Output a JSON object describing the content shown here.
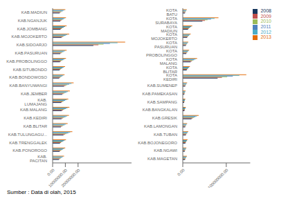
{
  "chart_data": [
    {
      "type": "bar",
      "orientation": "horizontal",
      "grid": false,
      "categories": [
        "KAB.MADIUN",
        "KAB.NGANJUK",
        "KAB.JOMBANG",
        "KAB.MOJOKERTO",
        "KAB.SIDOARJO",
        "KAB.PASURUAN",
        "KAB.PROBOLINGGO",
        "KAB.SITUBONDO",
        "KAB.BONDOWOSO",
        "KAB.BANYUWANGI",
        "KAB.JEMBER",
        "KAB. LUMAJANG",
        "KAB.MALANG",
        "KAB.KEDIRI",
        "KAB.BLITAR",
        "KAB.TULUNGAGU...",
        "KAB.TRENGGALEK",
        "KAB.PONOROGO",
        "KAB. PACITAN"
      ],
      "series": [
        {
          "name": "2008",
          "color": "#17375e",
          "values": [
            5500000,
            6000000,
            6200000,
            7000000,
            32000000,
            6000000,
            5800000,
            5500000,
            5200000,
            9000000,
            7500000,
            6800000,
            7200000,
            7000000,
            6500000,
            8500000,
            5800000,
            5500000,
            5000000
          ]
        },
        {
          "name": "2009",
          "color": "#c0504d",
          "values": [
            6200000,
            6800000,
            7000000,
            8000000,
            36000000,
            6800000,
            6600000,
            6200000,
            5900000,
            10200000,
            8500000,
            7700000,
            8200000,
            8000000,
            7400000,
            9700000,
            6600000,
            6200000,
            5700000
          ]
        },
        {
          "name": "2010",
          "color": "#9bbb59",
          "values": [
            7000000,
            7500000,
            7800000,
            9000000,
            40000000,
            7600000,
            7400000,
            6900000,
            6600000,
            11500000,
            9500000,
            8700000,
            9200000,
            9000000,
            8300000,
            10900000,
            7400000,
            7000000,
            6400000
          ]
        },
        {
          "name": "2011",
          "color": "#4f81bd",
          "values": [
            8000000,
            8500000,
            8800000,
            10200000,
            45000000,
            8600000,
            8400000,
            7800000,
            7500000,
            13000000,
            10800000,
            9800000,
            10400000,
            10200000,
            9400000,
            12300000,
            8400000,
            7900000,
            7200000
          ]
        },
        {
          "name": "2012",
          "color": "#4bacc6",
          "values": [
            9000000,
            9500000,
            9800000,
            11500000,
            51000000,
            9700000,
            9400000,
            8800000,
            8400000,
            14800000,
            12000000,
            11000000,
            11700000,
            11400000,
            10500000,
            13800000,
            9400000,
            8900000,
            8100000
          ]
        },
        {
          "name": "2013",
          "color": "#e36c09",
          "values": [
            10000000,
            10500000,
            11000000,
            13000000,
            57000000,
            11000000,
            10500000,
            9800000,
            9400000,
            16500000,
            13500000,
            12300000,
            13200000,
            12800000,
            11800000,
            15500000,
            10500000,
            9900000,
            9000000
          ]
        }
      ],
      "xlim": [
        0,
        62000000
      ],
      "xticks": [
        {
          "value": 0,
          "label": "0.00"
        },
        {
          "value": 10000000,
          "label": "10000000.00"
        },
        {
          "value": 20000000,
          "label": "20000000.00"
        }
      ],
      "annotations": [
        "Sumber : Data di olah, 2015"
      ]
    },
    {
      "type": "bar",
      "orientation": "horizontal",
      "grid": false,
      "legend": "right",
      "categories": [
        "KOTA BATU",
        "KOTA SURABAYA",
        "KOTA MADIUN",
        "KOTA MOJOKERTO",
        "KOTA PASURUAN",
        "KOTA PROBOLINGGO",
        "KOTA MALANG",
        "KOTA BLITAR",
        "KOTA KEDIRI",
        "KAB.SUMENEP",
        "KAB.PAMEKASAN",
        "KAB.SAMPANG",
        "KAB.BANGKALAN",
        "KAB.GRESIK",
        "KAB.LAMONGAN",
        "KAB.TUBAN",
        "KAB.BOJONEGORO",
        "KAB.NGAWI",
        "KAB.MAGETAN"
      ],
      "series": [
        {
          "name": "2008",
          "color": "#17375e",
          "values": [
            5000000,
            45000000,
            12000000,
            10000000,
            7000000,
            8000000,
            18000000,
            9000000,
            80000000,
            5500000,
            3500000,
            3200000,
            3800000,
            20000000,
            5500000,
            7000000,
            6000000,
            4500000,
            5200000
          ]
        },
        {
          "name": "2009",
          "color": "#c0504d",
          "values": [
            5700000,
            51000000,
            13500000,
            11300000,
            7900000,
            9000000,
            20400000,
            10200000,
            90000000,
            6200000,
            4000000,
            3600000,
            4300000,
            22600000,
            6200000,
            7900000,
            6800000,
            5100000,
            5900000
          ]
        },
        {
          "name": "2010",
          "color": "#9bbb59",
          "values": [
            6400000,
            57000000,
            15200000,
            12700000,
            8900000,
            10200000,
            23000000,
            11500000,
            102000000,
            7000000,
            4500000,
            4100000,
            4800000,
            25500000,
            7000000,
            8900000,
            7600000,
            5700000,
            6600000
          ]
        },
        {
          "name": "2011",
          "color": "#4f81bd",
          "values": [
            7300000,
            65000000,
            17200000,
            14400000,
            10100000,
            11500000,
            26000000,
            13000000,
            115000000,
            7900000,
            5100000,
            4600000,
            5500000,
            28800000,
            7900000,
            10100000,
            8600000,
            6500000,
            7500000
          ]
        },
        {
          "name": "2012",
          "color": "#4bacc6",
          "values": [
            8200000,
            73000000,
            19400000,
            16200000,
            11300000,
            13000000,
            29300000,
            14600000,
            130000000,
            8900000,
            5700000,
            5200000,
            6200000,
            32400000,
            8900000,
            11300000,
            9700000,
            7300000,
            8400000
          ]
        },
        {
          "name": "2013",
          "color": "#e36c09",
          "values": [
            9200000,
            82000000,
            21800000,
            18200000,
            12700000,
            14600000,
            33000000,
            16400000,
            146000000,
            10000000,
            6400000,
            5800000,
            6900000,
            36500000,
            10000000,
            12700000,
            10900000,
            8200000,
            9500000
          ]
        }
      ],
      "xlim": [
        0,
        155000000
      ],
      "xticks": [
        {
          "value": 0,
          "label": "0.00"
        },
        {
          "value": 100000000,
          "label": "100000000.00"
        }
      ]
    }
  ]
}
